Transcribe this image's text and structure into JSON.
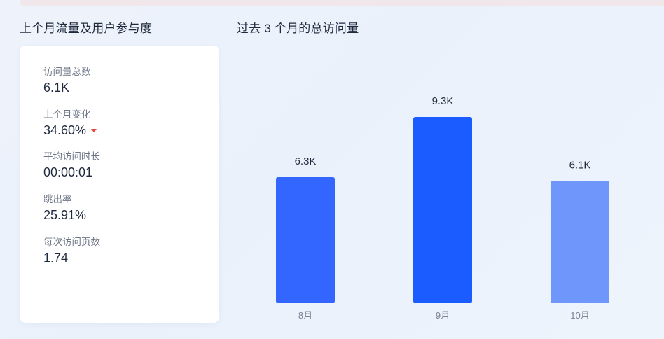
{
  "sections": {
    "left_title": "上个月流量及用户参与度",
    "right_title": "过去 3 个月的总访问量"
  },
  "stats": [
    {
      "label": "访问量总数",
      "value": "6.1K"
    },
    {
      "label": "上个月变化",
      "value": "34.60%",
      "trend": "down",
      "trend_color": "#e8453c"
    },
    {
      "label": "平均访问时长",
      "value": "00:00:01"
    },
    {
      "label": "跳出率",
      "value": "25.91%"
    },
    {
      "label": "每次访问页数",
      "value": "1.74"
    }
  ],
  "chart_data": {
    "type": "bar",
    "title": "过去 3 个月的总访问量",
    "categories": [
      "8月",
      "9月",
      "10月"
    ],
    "values": [
      6300,
      9300,
      6100
    ],
    "data_labels": [
      "6.3K",
      "9.3K",
      "6.1K"
    ],
    "ylim": [
      0,
      10000
    ],
    "grid": false,
    "legend": "none",
    "bar_colors": [
      "#3366ff",
      "#1a5cff",
      "#6e96fb"
    ]
  }
}
